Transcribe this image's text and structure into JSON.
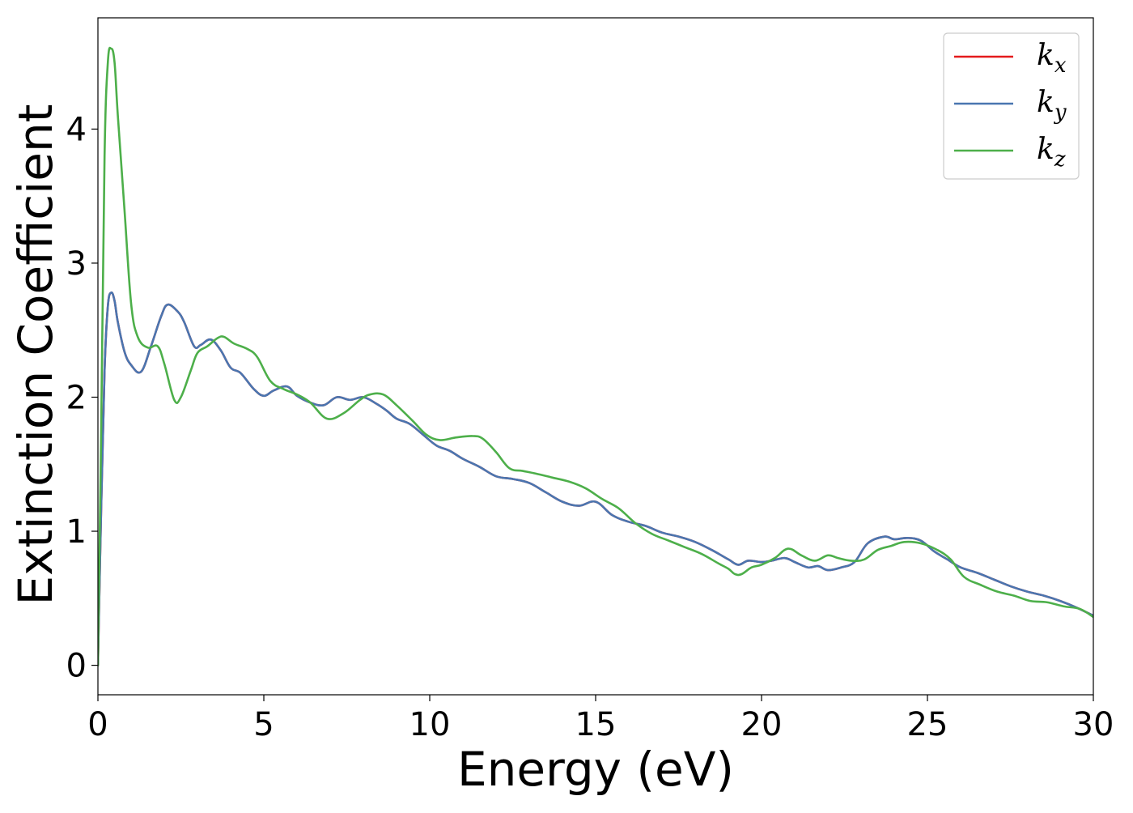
{
  "chart_data": {
    "type": "line",
    "title": "",
    "xlabel": "Energy (eV)",
    "ylabel": "Extinction Coefficient",
    "xlim": [
      0,
      30
    ],
    "ylim": [
      -0.22,
      4.83
    ],
    "xticks": [
      0,
      5,
      10,
      15,
      20,
      25,
      30
    ],
    "xtick_labels": [
      "0",
      "5",
      "10",
      "15",
      "20",
      "25",
      "30"
    ],
    "yticks": [
      0,
      1,
      2,
      3,
      4
    ],
    "ytick_labels": [
      "0",
      "1",
      "2",
      "3",
      "4"
    ],
    "grid": false,
    "legend_position": "top-right",
    "series": [
      {
        "name": "k",
        "subscript": "x",
        "color": "#e41a1c",
        "x": [
          0,
          0.1,
          0.2,
          0.3,
          0.4,
          0.5,
          0.6,
          0.8,
          1.0,
          1.3,
          1.6,
          1.9,
          2.1,
          2.4,
          2.6,
          2.9,
          3.1,
          3.4,
          3.7,
          4.0,
          4.3,
          4.7,
          5.0,
          5.3,
          5.7,
          6.0,
          6.4,
          6.8,
          7.2,
          7.6,
          8.0,
          8.4,
          8.7,
          9.0,
          9.4,
          9.8,
          10.2,
          10.6,
          11.0,
          11.5,
          12.0,
          12.5,
          13.0,
          13.5,
          14.0,
          14.5,
          15.0,
          15.5,
          16.0,
          16.5,
          17.0,
          17.5,
          18.0,
          18.5,
          19.0,
          19.3,
          19.6,
          20.0,
          20.3,
          20.7,
          21.0,
          21.4,
          21.7,
          22.0,
          22.4,
          22.8,
          23.2,
          23.7,
          24.0,
          24.4,
          24.8,
          25.2,
          25.6,
          26.0,
          26.5,
          27.0,
          27.5,
          28.0,
          28.5,
          29.0,
          29.5,
          30.0
        ],
        "y": [
          0.0,
          1.2,
          2.2,
          2.68,
          2.78,
          2.72,
          2.56,
          2.34,
          2.24,
          2.19,
          2.38,
          2.6,
          2.69,
          2.64,
          2.56,
          2.38,
          2.39,
          2.43,
          2.35,
          2.22,
          2.18,
          2.06,
          2.01,
          2.05,
          2.08,
          2.01,
          1.96,
          1.94,
          2.0,
          1.98,
          2.0,
          1.95,
          1.9,
          1.84,
          1.8,
          1.72,
          1.64,
          1.6,
          1.54,
          1.48,
          1.41,
          1.39,
          1.36,
          1.29,
          1.22,
          1.19,
          1.22,
          1.12,
          1.07,
          1.04,
          0.99,
          0.96,
          0.92,
          0.86,
          0.79,
          0.75,
          0.78,
          0.77,
          0.78,
          0.8,
          0.77,
          0.73,
          0.74,
          0.71,
          0.73,
          0.77,
          0.91,
          0.96,
          0.94,
          0.95,
          0.93,
          0.85,
          0.79,
          0.73,
          0.69,
          0.64,
          0.59,
          0.55,
          0.52,
          0.48,
          0.43,
          0.37
        ]
      },
      {
        "name": "k",
        "subscript": "y",
        "color": "#4a76b0",
        "x": [
          0,
          0.1,
          0.2,
          0.3,
          0.4,
          0.5,
          0.6,
          0.8,
          1.0,
          1.3,
          1.6,
          1.9,
          2.1,
          2.4,
          2.6,
          2.9,
          3.1,
          3.4,
          3.7,
          4.0,
          4.3,
          4.7,
          5.0,
          5.3,
          5.7,
          6.0,
          6.4,
          6.8,
          7.2,
          7.6,
          8.0,
          8.4,
          8.7,
          9.0,
          9.4,
          9.8,
          10.2,
          10.6,
          11.0,
          11.5,
          12.0,
          12.5,
          13.0,
          13.5,
          14.0,
          14.5,
          15.0,
          15.5,
          16.0,
          16.5,
          17.0,
          17.5,
          18.0,
          18.5,
          19.0,
          19.3,
          19.6,
          20.0,
          20.3,
          20.7,
          21.0,
          21.4,
          21.7,
          22.0,
          22.4,
          22.8,
          23.2,
          23.7,
          24.0,
          24.4,
          24.8,
          25.2,
          25.6,
          26.0,
          26.5,
          27.0,
          27.5,
          28.0,
          28.5,
          29.0,
          29.5,
          30.0
        ],
        "y": [
          0.0,
          1.2,
          2.2,
          2.68,
          2.78,
          2.72,
          2.56,
          2.34,
          2.24,
          2.19,
          2.38,
          2.6,
          2.69,
          2.64,
          2.56,
          2.38,
          2.39,
          2.43,
          2.35,
          2.22,
          2.18,
          2.06,
          2.01,
          2.05,
          2.08,
          2.01,
          1.96,
          1.94,
          2.0,
          1.98,
          2.0,
          1.95,
          1.9,
          1.84,
          1.8,
          1.72,
          1.64,
          1.6,
          1.54,
          1.48,
          1.41,
          1.39,
          1.36,
          1.29,
          1.22,
          1.19,
          1.22,
          1.12,
          1.07,
          1.04,
          0.99,
          0.96,
          0.92,
          0.86,
          0.79,
          0.75,
          0.78,
          0.77,
          0.78,
          0.8,
          0.77,
          0.73,
          0.74,
          0.71,
          0.73,
          0.77,
          0.91,
          0.96,
          0.94,
          0.95,
          0.93,
          0.85,
          0.79,
          0.73,
          0.69,
          0.64,
          0.59,
          0.55,
          0.52,
          0.48,
          0.43,
          0.37
        ]
      },
      {
        "name": "k",
        "subscript": "z",
        "color": "#4daf4a",
        "x": [
          0,
          0.1,
          0.2,
          0.3,
          0.4,
          0.5,
          0.6,
          0.8,
          1.0,
          1.2,
          1.5,
          1.8,
          2.0,
          2.3,
          2.5,
          2.8,
          3.0,
          3.3,
          3.6,
          3.8,
          4.1,
          4.5,
          4.8,
          5.2,
          5.6,
          6.0,
          6.4,
          6.9,
          7.4,
          7.9,
          8.2,
          8.6,
          9.0,
          9.5,
          9.9,
          10.3,
          10.8,
          11.3,
          11.6,
          12.0,
          12.4,
          12.8,
          13.2,
          13.7,
          14.2,
          14.7,
          15.2,
          15.7,
          16.2,
          16.7,
          17.2,
          17.7,
          18.2,
          18.7,
          19.0,
          19.2,
          19.4,
          19.7,
          20.0,
          20.4,
          20.8,
          21.2,
          21.6,
          22.0,
          22.3,
          22.7,
          23.1,
          23.5,
          23.9,
          24.3,
          24.8,
          25.3,
          25.7,
          26.1,
          26.6,
          27.1,
          27.6,
          28.1,
          28.6,
          29.1,
          29.6,
          30.0
        ],
        "y": [
          0.0,
          1.8,
          3.8,
          4.5,
          4.6,
          4.5,
          4.1,
          3.4,
          2.7,
          2.45,
          2.37,
          2.38,
          2.25,
          1.98,
          2.0,
          2.2,
          2.33,
          2.38,
          2.44,
          2.45,
          2.4,
          2.36,
          2.3,
          2.12,
          2.06,
          2.02,
          1.96,
          1.84,
          1.88,
          1.98,
          2.02,
          2.02,
          1.94,
          1.82,
          1.72,
          1.68,
          1.7,
          1.71,
          1.69,
          1.59,
          1.47,
          1.45,
          1.43,
          1.4,
          1.37,
          1.32,
          1.24,
          1.17,
          1.06,
          0.98,
          0.93,
          0.88,
          0.83,
          0.76,
          0.72,
          0.68,
          0.68,
          0.73,
          0.75,
          0.8,
          0.87,
          0.82,
          0.78,
          0.82,
          0.8,
          0.78,
          0.79,
          0.86,
          0.89,
          0.92,
          0.91,
          0.86,
          0.79,
          0.66,
          0.6,
          0.55,
          0.52,
          0.48,
          0.47,
          0.44,
          0.42,
          0.36
        ]
      }
    ]
  }
}
